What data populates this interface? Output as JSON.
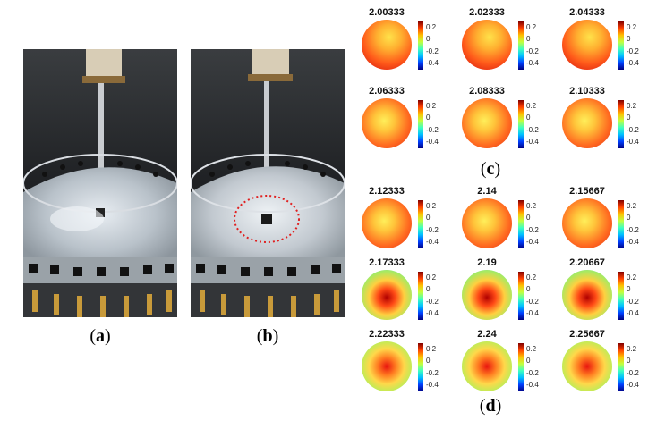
{
  "panels": {
    "a": {
      "letter": "a"
    },
    "b": {
      "letter": "b"
    },
    "c": {
      "letter": "c",
      "times": [
        "2.00333",
        "2.02333",
        "2.04333",
        "2.06333",
        "2.08333",
        "2.10333"
      ]
    },
    "d": {
      "letter": "d",
      "times": [
        "2.12333",
        "2.14",
        "2.15667",
        "2.17333",
        "2.19",
        "2.20667",
        "2.22333",
        "2.24",
        "2.25667"
      ]
    }
  },
  "colorbar": {
    "ticks": [
      "0.2",
      "0",
      "-0.2",
      "-0.4"
    ],
    "range": [
      -0.5,
      0.3
    ],
    "colors": [
      "#00007f",
      "#0040ff",
      "#00c0ff",
      "#40ffbf",
      "#c0ff40",
      "#ffc000",
      "#ff4000",
      "#7f0000"
    ]
  },
  "photo_annotation": {
    "circle_color": "#e02020",
    "circle_style": "dotted"
  }
}
